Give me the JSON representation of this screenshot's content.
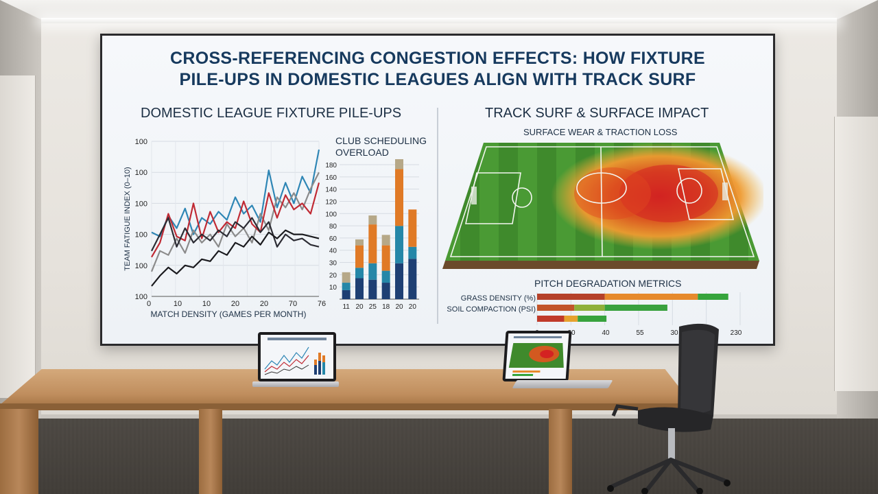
{
  "screen": {
    "title_line1": "CROSS-REFERENCING CONGESTION EFFECTS: HOW FIXTURE",
    "title_line2": "PILE-UPS IN DOMESTIC LEAGUES ALIGN WITH TRACK SURF",
    "left_title": "DOMESTIC LEAGUE FIXTURE PILE-UPS",
    "right_title": "TRACK SURF & SURFACE IMPACT",
    "right_subtitle": "SURFACE WEAR & TRACTION LOSS"
  },
  "chart_data": [
    {
      "type": "line",
      "title": "",
      "xlabel": "MATCH DENSITY (GAMES PER MONTH)",
      "ylabel": "TEAM FATIGUE INDEX (0–10)",
      "x_tick_labels": [
        "0",
        "10",
        "10",
        "20",
        "20",
        "70",
        "76"
      ],
      "y_tick_labels": [
        "100",
        "100",
        "100",
        "100",
        "100",
        "100"
      ],
      "grid": true,
      "series": [
        {
          "color": "#2e86b5",
          "values": [
            62,
            58,
            78,
            66,
            85,
            60,
            76,
            70,
            82,
            74,
            96,
            80,
            88,
            72,
            122,
            86,
            110,
            90,
            116,
            100,
            142
          ]
        },
        {
          "color": "#8b8b8b",
          "values": [
            24,
            44,
            40,
            56,
            42,
            64,
            52,
            60,
            48,
            70,
            58,
            66,
            52,
            80,
            64,
            96,
            86,
            100,
            84,
            104,
            120
          ]
        },
        {
          "color": "#c02a34",
          "values": [
            38,
            52,
            80,
            58,
            54,
            90,
            56,
            82,
            62,
            72,
            66,
            92,
            70,
            62,
            100,
            76,
            98,
            84,
            90,
            80,
            110
          ]
        },
        {
          "color": "#2c2c34",
          "values": [
            44,
            60,
            76,
            48,
            66,
            52,
            60,
            54,
            64,
            58,
            72,
            66,
            76,
            62,
            72,
            48,
            60,
            54,
            56,
            50,
            48
          ]
        },
        {
          "color": "#1a1a1e",
          "values": [
            10,
            20,
            28,
            22,
            30,
            28,
            36,
            34,
            44,
            40,
            52,
            48,
            58,
            50,
            62,
            56,
            64,
            60,
            60,
            58,
            56
          ]
        }
      ]
    },
    {
      "type": "bar",
      "title": "CLUB SCHEDULING OVERLOAD",
      "categories": [
        "11",
        "20",
        "25",
        "18",
        "20",
        "20"
      ],
      "y_tick_labels": [
        "10",
        "20",
        "30",
        "40",
        "50",
        "60",
        "80",
        "100",
        "120",
        "140",
        "160",
        "180"
      ],
      "series": [
        {
          "name": "",
          "color": "#1e3f73",
          "values": [
            6,
            14,
            13,
            11,
            24,
            27
          ]
        },
        {
          "name": "",
          "color": "#2587a8",
          "values": [
            5,
            7,
            11,
            8,
            25,
            8
          ]
        },
        {
          "name": "",
          "color": "#e07a26",
          "values": [
            0,
            15,
            26,
            17,
            38,
            25
          ]
        },
        {
          "name": "",
          "color": "#b6a888",
          "values": [
            7,
            4,
            6,
            7,
            10,
            0
          ]
        }
      ]
    },
    {
      "type": "bar",
      "title": "PITCH DEGRADATION METRICS",
      "categories": [
        "GRASS DENSITY (%)",
        "SOIL COMPACTION (PSI)",
        ""
      ],
      "x_tick_labels": [
        "0",
        "20",
        "40",
        "55",
        "30",
        "230"
      ],
      "series": [
        {
          "name": "GRASS DENSITY (%)",
          "segments": [
            {
              "value": 40,
              "color": "#b5412a"
            },
            {
              "value": 55,
              "color": "#e68a2c"
            },
            {
              "value": 18,
              "color": "#36a43c"
            }
          ]
        },
        {
          "name": "SOIL COMPACTION (PSI)",
          "segments": [
            {
              "value": 22,
              "color": "#c2552a"
            },
            {
              "value": 18,
              "color": "#8fb03a"
            },
            {
              "value": 37,
              "color": "#39a13e"
            }
          ]
        },
        {
          "name": "",
          "segments": [
            {
              "value": 16,
              "color": "#c03a2a"
            },
            {
              "value": 8,
              "color": "#e6a22e"
            },
            {
              "value": 17,
              "color": "#37a23d"
            }
          ]
        }
      ]
    }
  ]
}
